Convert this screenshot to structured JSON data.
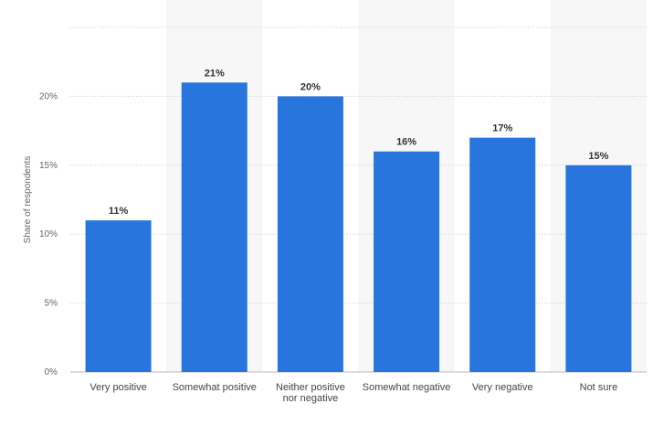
{
  "chart_data": {
    "type": "bar",
    "title": "",
    "xlabel": "",
    "ylabel": "Share of respondents",
    "categories": [
      [
        "Very positive"
      ],
      [
        "Somewhat positive"
      ],
      [
        "Neither positive",
        "nor negative"
      ],
      [
        "Somewhat negative"
      ],
      [
        "Very negative"
      ],
      [
        "Not sure"
      ]
    ],
    "values": [
      11,
      21,
      20,
      16,
      17,
      15
    ],
    "data_labels": [
      "11%",
      "21%",
      "20%",
      "16%",
      "17%",
      "15%"
    ],
    "ylim": [
      0,
      25
    ],
    "yticks": [
      0,
      5,
      10,
      15,
      20
    ],
    "ytick_labels": [
      "0%",
      "5%",
      "10%",
      "15%",
      "20%"
    ],
    "grid": true,
    "legend": "none",
    "bar_color": "#2876dd",
    "band_color": "#f7f7f7",
    "grid_color": "#cccccc"
  }
}
